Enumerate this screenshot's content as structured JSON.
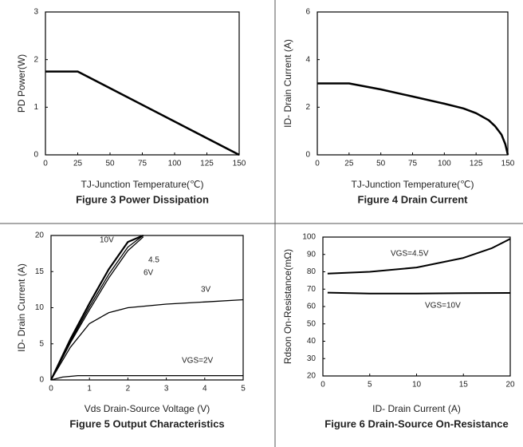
{
  "chart_data": [
    {
      "type": "line",
      "title": "Figure 3 Power Dissipation",
      "x_label": "TJ-Junction Temperature(℃)",
      "y_label": "PD  Power(W)",
      "xlim": [
        0,
        150
      ],
      "ylim": [
        0,
        3
      ],
      "xticks": [
        0,
        25,
        50,
        75,
        100,
        125,
        150
      ],
      "yticks": [
        0,
        1,
        2,
        3
      ],
      "series": [
        {
          "color": "#000000",
          "x": [
            0,
            25,
            150
          ],
          "values": [
            1.75,
            1.75,
            0
          ]
        }
      ]
    },
    {
      "type": "line",
      "title": "Figure 4 Drain Current",
      "x_label": "TJ-Junction Temperature(℃)",
      "y_label": "ID- Drain Current (A)",
      "xlim": [
        0,
        150
      ],
      "ylim": [
        0,
        6
      ],
      "xticks": [
        0,
        25,
        50,
        75,
        100,
        125,
        150
      ],
      "yticks": [
        0,
        2,
        4,
        6
      ],
      "series": [
        {
          "color": "#000000",
          "x": [
            0,
            25,
            50,
            75,
            100,
            115,
            125,
            135,
            140,
            145,
            148,
            150
          ],
          "values": [
            3,
            3,
            2.75,
            2.45,
            2.15,
            1.95,
            1.75,
            1.45,
            1.2,
            0.85,
            0.45,
            0
          ]
        }
      ]
    },
    {
      "type": "line",
      "title": "Figure 5 Output Characteristics",
      "x_label": "Vds Drain-Source Voltage (V)",
      "y_label": "ID- Drain Current (A)",
      "xlim": [
        0,
        5
      ],
      "ylim": [
        0,
        20
      ],
      "xticks": [
        0,
        1,
        2,
        3,
        4,
        5
      ],
      "yticks": [
        0,
        5,
        10,
        15,
        20
      ],
      "series": [
        {
          "name": "10V",
          "color": "#000000",
          "x": [
            0,
            0.5,
            1,
            1.5,
            2,
            2.4
          ],
          "values": [
            0,
            5.6,
            10.6,
            15.3,
            19.1,
            20
          ]
        },
        {
          "name": "4.5",
          "color": "#000000",
          "x": [
            0,
            0.5,
            1,
            1.5,
            2,
            2.4
          ],
          "values": [
            0,
            5.1,
            9.7,
            14.1,
            17.9,
            19.8
          ]
        },
        {
          "name": "6V",
          "color": "#000000",
          "x": [
            0,
            0.5,
            1,
            1.5,
            2,
            2.4
          ],
          "values": [
            0,
            5.3,
            10.1,
            14.6,
            18.4,
            20
          ]
        },
        {
          "name": "3V",
          "color": "#000000",
          "x": [
            0,
            0.5,
            1,
            1.5,
            2,
            3,
            4,
            5
          ],
          "values": [
            0,
            4.5,
            7.8,
            9.3,
            10,
            10.5,
            10.8,
            11.1
          ]
        },
        {
          "name": "VGS=2V",
          "color": "#000000",
          "x": [
            0,
            0.3,
            0.7,
            1,
            5
          ],
          "values": [
            0,
            0.4,
            0.6,
            0.6,
            0.6
          ]
        }
      ]
    },
    {
      "type": "line",
      "title": "Figure 6 Drain-Source On-Resistance",
      "x_label": "ID- Drain Current (A)",
      "y_label": "Rdson On-Resistance(mΩ)",
      "xlim": [
        0,
        20
      ],
      "ylim": [
        20,
        100
      ],
      "xticks": [
        0,
        5,
        10,
        15,
        20
      ],
      "yticks": [
        20,
        30,
        40,
        50,
        60,
        70,
        80,
        90,
        100
      ],
      "series": [
        {
          "name": "VGS=4.5V",
          "color": "#000000",
          "x": [
            0.5,
            5,
            10,
            15,
            18,
            20
          ],
          "values": [
            79,
            80,
            82.5,
            88,
            93.5,
            99
          ]
        },
        {
          "name": "VGS=10V",
          "color": "#000000",
          "x": [
            0.5,
            5,
            10,
            15,
            20
          ],
          "values": [
            68,
            67.5,
            67.5,
            67.7,
            67.8
          ]
        }
      ]
    }
  ]
}
